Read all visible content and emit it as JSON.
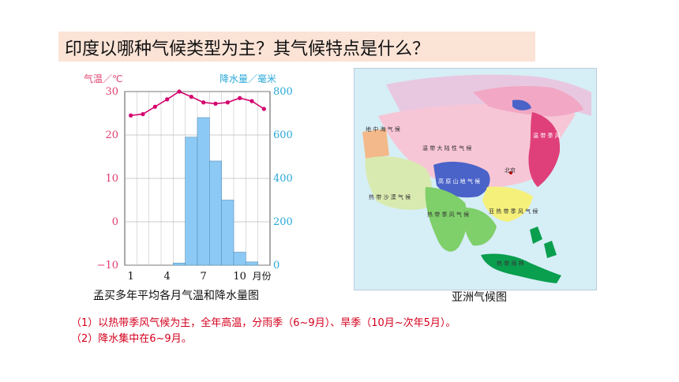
{
  "question": "印度以哪种气候类型为主？其气候特点是什么？",
  "chart_caption": "孟买多年平均各月气温和降水量图",
  "map_caption": "亚洲气候图",
  "notes": [
    "（1）以热带季风气候为主，全年高温，分雨季（6~9月）、旱季（10月~次年5月）。",
    "（2）降水集中在6~9月。"
  ],
  "map_labels": {
    "temperate_continental": "温 带 大 陆 性 气 候",
    "highland": "高 原 山 地 气 候",
    "tropical_desert": "热 带 沙 漠 气 候",
    "tropical_monsoon": "热 带 季 风 气 候",
    "subtropical_monsoon": "亚 热 带 季 风 气 候",
    "mediterranean": "地 中 海 气 候",
    "temperate_monsoon": "温 带 季 风",
    "beijing": "北京",
    "tropical_rainforest": "热 带 雨 林"
  },
  "colors": {
    "temperature_line": "#d4006e",
    "temperature_axis": "#e0406e",
    "precip_bar": "#8ccaf5",
    "precip_axis": "#2aa8d8",
    "question_bg": "#fbe3d6",
    "note_text": "#d4001e"
  },
  "chart_data": {
    "type": "bar+line",
    "x": [
      1,
      2,
      3,
      4,
      5,
      6,
      7,
      8,
      9,
      10,
      11,
      12
    ],
    "x_ticks": [
      "1",
      "4",
      "7",
      "10"
    ],
    "x_unit": "月份",
    "temperature": {
      "label": "气温／℃",
      "values": [
        24.5,
        24.8,
        26.5,
        28.2,
        30,
        28.8,
        27.5,
        27.2,
        27.5,
        28.5,
        27.8,
        26
      ],
      "ylim": [
        -10,
        30
      ],
      "ticks": [
        "30",
        "20",
        "10",
        "0",
        "−10"
      ]
    },
    "precipitation": {
      "label": "降水量／毫米",
      "values": [
        0,
        0,
        0,
        0,
        10,
        590,
        680,
        480,
        300,
        60,
        15,
        0
      ],
      "ylim": [
        0,
        800
      ],
      "ticks": [
        "800",
        "600",
        "400",
        "200",
        "0"
      ]
    }
  }
}
